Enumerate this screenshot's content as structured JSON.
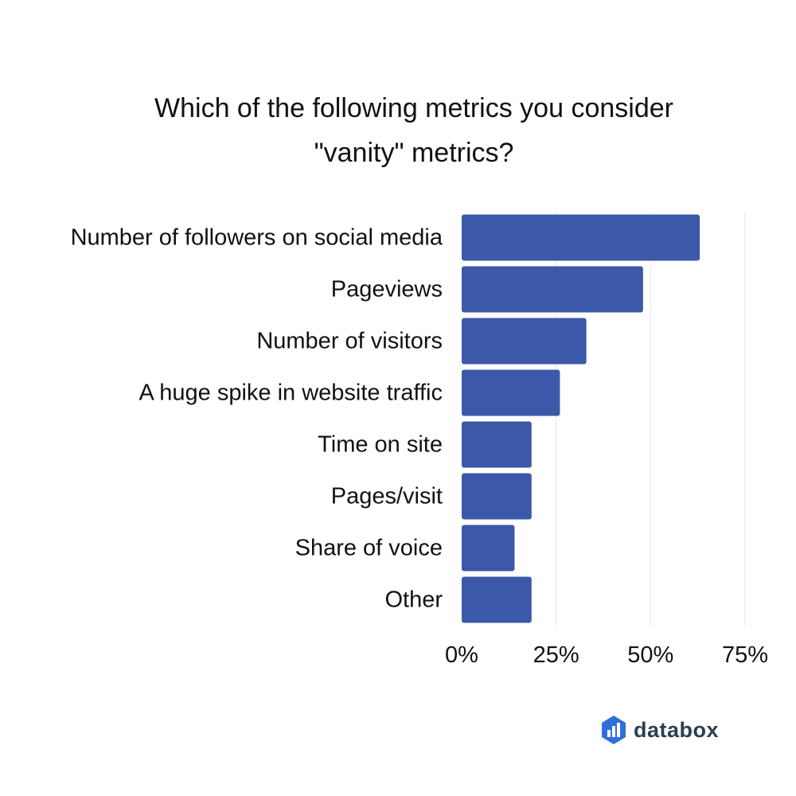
{
  "chart_data": {
    "type": "bar",
    "orientation": "horizontal",
    "title_lines": [
      "Which of the following metrics you consider",
      "\"vanity\" metrics?"
    ],
    "categories": [
      "Number of followers on social media",
      "Pageviews",
      "Number of visitors",
      "A huge spike in website traffic",
      "Time on site",
      "Pages/visit",
      "Share of voice",
      "Other"
    ],
    "values": [
      63,
      48,
      33,
      26,
      18.5,
      18.5,
      14,
      18.5
    ],
    "xlim": [
      0,
      75
    ],
    "x_ticks": [
      0,
      25,
      50,
      75
    ],
    "x_tick_labels": [
      "0%",
      "25%",
      "50%",
      "75%"
    ],
    "grid": "vertical",
    "legend": "none",
    "bar_color": "#3c58a9",
    "grid_color": "#e6e6e6"
  },
  "brand": {
    "name": "databox",
    "icon": "databox-logo-icon",
    "icon_color": "#2f6fdb"
  }
}
